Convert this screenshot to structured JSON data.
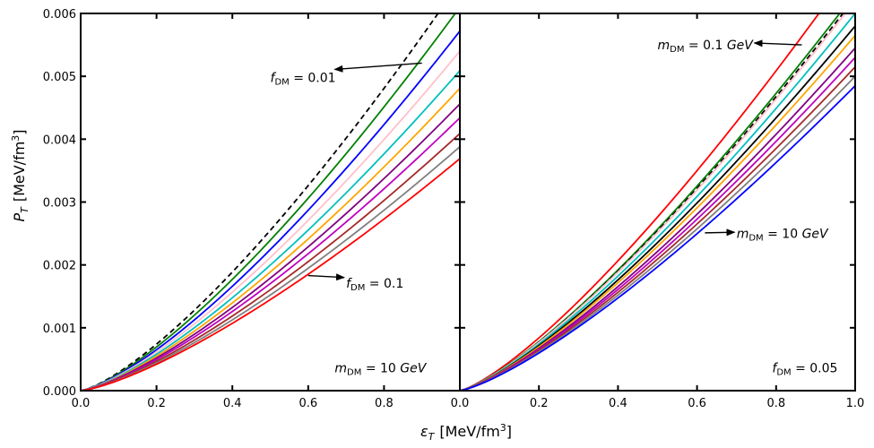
{
  "chart_data": {
    "type": "line",
    "xlabel": "ε_T  [MeV/fm³]",
    "xlabel_main": "ε",
    "xlabel_sub": "T",
    "xlabel_unit": "[MeV/fm",
    "xlabel_unit_sup": "3",
    "xlabel_unit_close": "]",
    "ylabel": "P_T  [MeV/fm³]",
    "ylabel_main": "P",
    "ylabel_sub": "T",
    "ylabel_unit": "[MeV/fm",
    "ylabel_unit_sup": "3",
    "ylabel_unit_close": "]",
    "xlim": [
      0,
      1.0
    ],
    "ylim": [
      0,
      0.006
    ],
    "grid": false,
    "y_ticks": [
      "0.000",
      "0.001",
      "0.002",
      "0.003",
      "0.004",
      "0.005",
      "0.006"
    ],
    "left_x_ticks": [
      "0.0",
      "0.2",
      "0.4",
      "0.6",
      "0.8"
    ],
    "right_x_ticks": [
      "0.0",
      "0.2",
      "0.4",
      "0.6",
      "0.8",
      "1.0"
    ],
    "panels": [
      {
        "name": "left",
        "annotations": [
          {
            "name": "fdm-001",
            "text_main": "f",
            "text_sub": "DM",
            "text_rest": " = 0.01",
            "arrow_from": [
              0.9,
              0.00521
            ],
            "arrow_to": [
              0.67,
              0.00511
            ],
            "text_at": [
              0.5,
              0.00498
            ]
          },
          {
            "name": "fdm-01",
            "text_main": "f",
            "text_sub": "DM",
            "text_rest": " = 0.1",
            "arrow_from": [
              0.6,
              0.00183
            ],
            "arrow_to": [
              0.695,
              0.0018
            ],
            "text_at": [
              0.7,
              0.00171
            ]
          },
          {
            "name": "mdm-10",
            "text_main": "m",
            "text_sub": "DM",
            "text_rest": " = 10 ",
            "text_unit": "GeV",
            "text_at": [
              0.67,
              0.00036
            ]
          }
        ],
        "series": [
          {
            "color": "#000000",
            "dashed": true,
            "y_at_1": 0.0065
          },
          {
            "color": "#008000",
            "dashed": false,
            "y_at_1": 0.0061
          },
          {
            "color": "#0000ff",
            "dashed": false,
            "y_at_1": 0.00572
          },
          {
            "color": "#ffc0cb",
            "dashed": false,
            "y_at_1": 0.0054
          },
          {
            "color": "#00bfbf",
            "dashed": false,
            "y_at_1": 0.00509
          },
          {
            "color": "#ffa500",
            "dashed": false,
            "y_at_1": 0.00481
          },
          {
            "color": "#800080",
            "dashed": false,
            "y_at_1": 0.00456
          },
          {
            "color": "#bf00bf",
            "dashed": false,
            "y_at_1": 0.00434
          },
          {
            "color": "#a52a2a",
            "dashed": false,
            "y_at_1": 0.00409
          },
          {
            "color": "#808080",
            "dashed": false,
            "y_at_1": 0.00388
          },
          {
            "color": "#ff0000",
            "dashed": false,
            "y_at_1": 0.00369
          }
        ]
      },
      {
        "name": "right",
        "annotations": [
          {
            "name": "mdm-01",
            "text_main": "m",
            "text_sub": "DM",
            "text_rest": " = 0.1 ",
            "text_unit": "GeV",
            "arrow_from": [
              0.865,
              0.0055
            ],
            "arrow_to": [
              0.745,
              0.00553
            ],
            "text_at": [
              0.5,
              0.0055
            ]
          },
          {
            "name": "mdm-10r",
            "text_main": "m",
            "text_sub": "DM",
            "text_rest": " = 10 ",
            "text_unit": "GeV",
            "arrow_from": [
              0.62,
              0.00251
            ],
            "arrow_to": [
              0.695,
              0.00252
            ],
            "text_at": [
              0.7,
              0.0025
            ]
          },
          {
            "name": "fdm-005",
            "text_main": "f",
            "text_sub": "DM",
            "text_rest": " = 0.05",
            "text_at": [
              0.79,
              0.00036
            ]
          }
        ],
        "series": [
          {
            "color": "#ff0000",
            "dashed": false,
            "y_at_1": 0.0068
          },
          {
            "color": "#008000",
            "dashed": false,
            "y_at_1": 0.00632
          },
          {
            "color": "#000000",
            "dashed": true,
            "y_at_1": 0.00625
          },
          {
            "color": "#ffc0cb",
            "dashed": false,
            "y_at_1": 0.0062
          },
          {
            "color": "#00bfbf",
            "dashed": false,
            "y_at_1": 0.006
          },
          {
            "color": "#000000",
            "dashed": false,
            "y_at_1": 0.0058
          },
          {
            "color": "#ffa500",
            "dashed": false,
            "y_at_1": 0.00565
          },
          {
            "color": "#800080",
            "dashed": false,
            "y_at_1": 0.00545
          },
          {
            "color": "#bf00bf",
            "dashed": false,
            "y_at_1": 0.0053
          },
          {
            "color": "#a52a2a",
            "dashed": false,
            "y_at_1": 0.00515
          },
          {
            "color": "#808080",
            "dashed": false,
            "y_at_1": 0.005
          },
          {
            "color": "#0000ff",
            "dashed": false,
            "y_at_1": 0.00485
          }
        ]
      }
    ]
  }
}
